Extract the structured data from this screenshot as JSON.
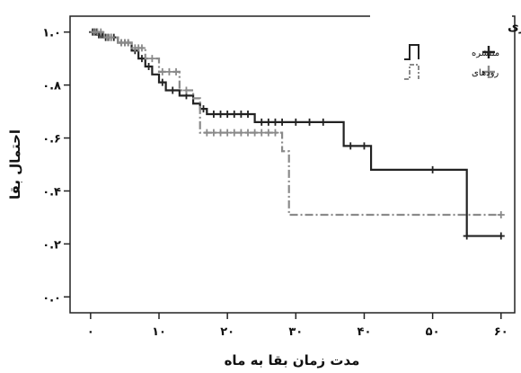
{
  "chart_data": {
    "type": "line",
    "step": true,
    "xlabel": "مدت زمان بقا به ماه",
    "ylabel": "احتمال بقا",
    "xlim": [
      -3,
      62
    ],
    "ylim": [
      -0.06,
      1.06
    ],
    "x_ticks": [
      0,
      10,
      20,
      30,
      40,
      50,
      60
    ],
    "x_tick_labels": [
      "۰",
      "۱۰",
      "۲۰",
      "۳۰",
      "۴۰",
      "۵۰",
      "۶۰"
    ],
    "y_ticks": [
      0.0,
      0.2,
      0.4,
      0.6,
      0.8,
      1.0
    ],
    "y_tick_labels": [
      "۰.۰",
      "۰.۲",
      "۰.۴",
      "۰.۶",
      "۰.۸",
      "۱.۰"
    ],
    "grid": false,
    "legend": {
      "title": "هیستولوژی بیماری",
      "position": "top-right"
    },
    "series": [
      {
        "name": "منتشره",
        "color": "#222222",
        "dash": "solid",
        "steps": [
          [
            0,
            1.0
          ],
          [
            1,
            0.99
          ],
          [
            2,
            0.98
          ],
          [
            4,
            0.96
          ],
          [
            6,
            0.93
          ],
          [
            7,
            0.9
          ],
          [
            8,
            0.87
          ],
          [
            9,
            0.84
          ],
          [
            10,
            0.81
          ],
          [
            11,
            0.78
          ],
          [
            13,
            0.76
          ],
          [
            15,
            0.73
          ],
          [
            16,
            0.71
          ],
          [
            17,
            0.69
          ],
          [
            24,
            0.66
          ],
          [
            37,
            0.57
          ],
          [
            41,
            0.48
          ],
          [
            55,
            0.23
          ],
          [
            60,
            0.23
          ]
        ],
        "censored": [
          0.3,
          0.6,
          0.9,
          1.2,
          1.5,
          1.8,
          2.2,
          2.6,
          3,
          3.4,
          4.5,
          5,
          5.5,
          6.5,
          7.5,
          8.5,
          10.5,
          12,
          14,
          16.5,
          18,
          19,
          20,
          21,
          22,
          23,
          25,
          26,
          27,
          28,
          30,
          32,
          34,
          38,
          40,
          50,
          55,
          60
        ]
      },
      {
        "name": "رودهای",
        "color": "#8a8a8a",
        "dash": "dash-dot",
        "steps": [
          [
            0,
            1.0
          ],
          [
            2,
            0.98
          ],
          [
            4,
            0.96
          ],
          [
            6,
            0.94
          ],
          [
            8,
            0.9
          ],
          [
            10,
            0.85
          ],
          [
            13,
            0.78
          ],
          [
            15,
            0.75
          ],
          [
            16,
            0.62
          ],
          [
            28,
            0.55
          ],
          [
            29,
            0.31
          ],
          [
            60,
            0.31
          ]
        ],
        "censored": [
          0.5,
          1,
          1.5,
          2.5,
          3,
          4.5,
          5,
          5.5,
          6.5,
          7,
          7.5,
          9,
          10.5,
          11.5,
          12.5,
          14,
          17,
          18,
          19,
          20,
          21,
          22,
          23,
          24,
          25,
          26,
          27,
          60
        ]
      }
    ]
  }
}
